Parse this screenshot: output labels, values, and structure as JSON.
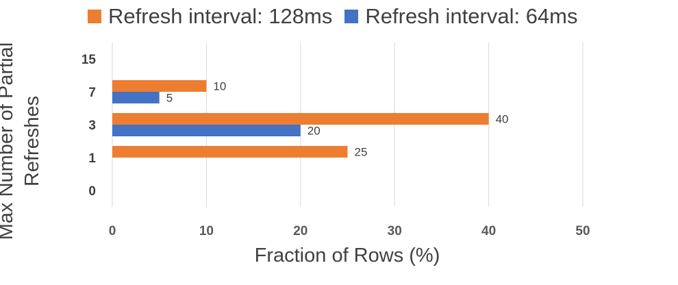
{
  "chart_data": {
    "type": "bar",
    "orientation": "horizontal",
    "categories": [
      "0",
      "1",
      "3",
      "7",
      "15"
    ],
    "series": [
      {
        "name": "Refresh interval: 128ms",
        "color": "#ED7D31",
        "values": [
          0,
          25,
          40,
          10,
          0
        ]
      },
      {
        "name": "Refresh interval: 64ms",
        "color": "#4472C4",
        "values": [
          0,
          0,
          20,
          5,
          0
        ]
      }
    ],
    "data_labels": true,
    "xlabel": "Fraction of Rows (%)",
    "ylabel": "Max Number of Partial Refreshes",
    "xlim": [
      0,
      50
    ],
    "xticks": [
      "0",
      "10",
      "20",
      "30",
      "40",
      "50"
    ],
    "grid": "vertical",
    "legend": "top"
  }
}
